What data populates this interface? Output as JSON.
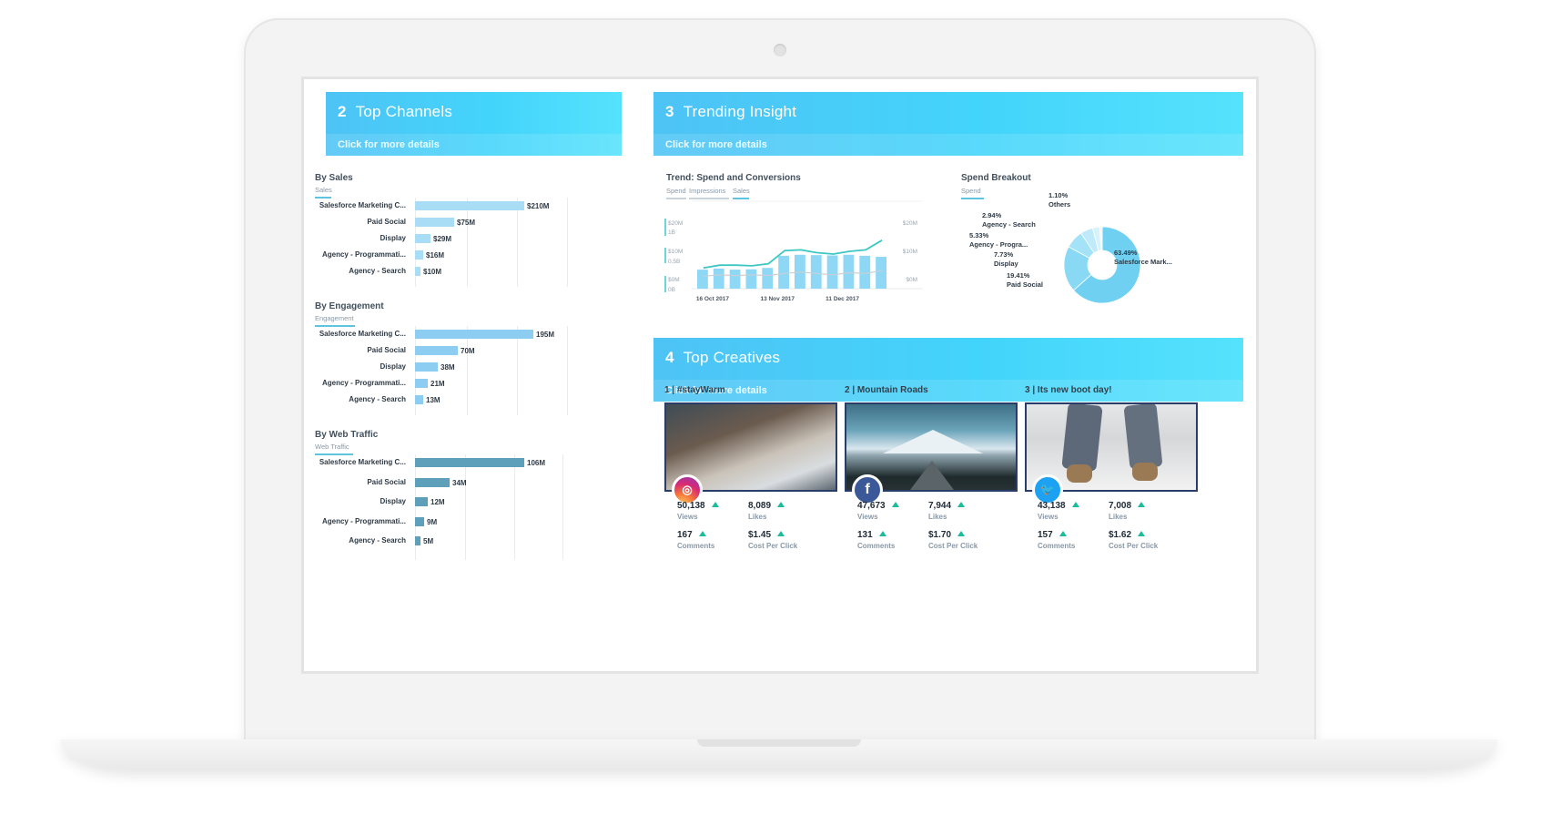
{
  "top_channels": {
    "number": "2",
    "title": "Top Channels",
    "link": "Click for more details",
    "charts": [
      {
        "title": "By Sales",
        "subtitle": "Sales",
        "color": "#a9ddf6",
        "rows": [
          {
            "label": "Salesforce Marketing C...",
            "value": 210,
            "value_label": "$210M"
          },
          {
            "label": "Paid Social",
            "value": 75,
            "value_label": "$75M"
          },
          {
            "label": "Display",
            "value": 29,
            "value_label": "$29M"
          },
          {
            "label": "Agency - Programmati...",
            "value": 16,
            "value_label": "$16M"
          },
          {
            "label": "Agency - Search",
            "value": 10,
            "value_label": "$10M"
          }
        ]
      },
      {
        "title": "By Engagement",
        "subtitle": "Engagement",
        "color": "#8dcdf2",
        "rows": [
          {
            "label": "Salesforce Marketing C...",
            "value": 195,
            "value_label": "195M"
          },
          {
            "label": "Paid Social",
            "value": 70,
            "value_label": "70M"
          },
          {
            "label": "Display",
            "value": 38,
            "value_label": "38M"
          },
          {
            "label": "Agency - Programmati...",
            "value": 21,
            "value_label": "21M"
          },
          {
            "label": "Agency - Search",
            "value": 13,
            "value_label": "13M"
          }
        ]
      },
      {
        "title": "By Web Traffic",
        "subtitle": "Web Traffic",
        "color": "#5e9fba",
        "rows": [
          {
            "label": "Salesforce Marketing C...",
            "value": 106,
            "value_label": "106M"
          },
          {
            "label": "Paid Social",
            "value": 34,
            "value_label": "34M"
          },
          {
            "label": "Display",
            "value": 12,
            "value_label": "12M"
          },
          {
            "label": "Agency - Programmati...",
            "value": 9,
            "value_label": "9M"
          },
          {
            "label": "Agency - Search",
            "value": 5,
            "value_label": "5M"
          }
        ]
      }
    ]
  },
  "trending": {
    "number": "3",
    "title": "Trending Insight",
    "link": "Click for more details",
    "trend": {
      "title": "Trend: Spend and Conversions",
      "tabs": [
        "Spend",
        "Impressions",
        "Sales"
      ],
      "left_ticks": [
        "$20M",
        "1B",
        "$10M",
        "0.5B",
        "$0M",
        "0B"
      ],
      "right_ticks": [
        "$20M",
        "$10M",
        "$0M"
      ],
      "x_ticks": [
        "16 Oct 2017",
        "13 Nov 2017",
        "11 Dec 2017"
      ]
    },
    "breakout": {
      "title": "Spend Breakout",
      "tab": "Spend",
      "slices": [
        {
          "pct": "63.49%",
          "name": "Salesforce Mark...",
          "value": 63.49,
          "color": "#6fd0f2"
        },
        {
          "pct": "19.41%",
          "name": "Paid Social",
          "value": 19.41,
          "color": "#8ad9f4"
        },
        {
          "pct": "7.73%",
          "name": "Display",
          "value": 7.73,
          "color": "#a4e2f7"
        },
        {
          "pct": "5.33%",
          "name": "Agency - Progra...",
          "value": 5.33,
          "color": "#bfeafa"
        },
        {
          "pct": "2.94%",
          "name": "Agency - Search",
          "value": 2.94,
          "color": "#d6f2fc"
        },
        {
          "pct": "1.10%",
          "name": "Others",
          "value": 1.1,
          "color": "#e9f8fe"
        }
      ]
    }
  },
  "chart_data": {
    "type": "bar",
    "title": "Trend: Spend and Conversions",
    "x": [
      "16 Oct 2017",
      "",
      "",
      "",
      "13 Nov 2017",
      "",
      "",
      "",
      "11 Dec 2017",
      "",
      "",
      ""
    ],
    "series": [
      {
        "name": "Spend",
        "type": "bar",
        "values": [
          5.5,
          5.8,
          5.5,
          5.6,
          6.0,
          9.5,
          9.8,
          9.7,
          9.6,
          9.8,
          9.5,
          9.2
        ],
        "color": "#8fd8f5"
      },
      {
        "name": "Sales",
        "type": "line",
        "values": [
          0.3,
          0.34,
          0.34,
          0.33,
          0.36,
          0.55,
          0.56,
          0.52,
          0.5,
          0.54,
          0.56,
          0.7
        ],
        "color": "#3cc7c4"
      },
      {
        "name": "Impressions",
        "type": "line",
        "values": [
          0.18,
          0.2,
          0.19,
          0.2,
          0.19,
          0.22,
          0.24,
          0.22,
          0.2,
          0.23,
          0.22,
          0.26
        ],
        "color": "#c9cfd6"
      }
    ],
    "ylim": [
      0,
      20
    ],
    "y2lim": [
      0,
      1
    ]
  },
  "top_creatives": {
    "number": "4",
    "title": "Top Creatives",
    "link": "Click for more details",
    "items": [
      {
        "title": "1 | #stayWarm",
        "network": "instagram-icon",
        "views": "50,138",
        "likes": "8,089",
        "comments": "167",
        "cpc": "$1.45"
      },
      {
        "title": "2 | Mountain Roads",
        "network": "facebook-icon",
        "views": "47,673",
        "likes": "7,944",
        "comments": "131",
        "cpc": "$1.70"
      },
      {
        "title": "3 | Its new boot day!",
        "network": "twitter-icon",
        "views": "43,138",
        "likes": "7,008",
        "comments": "157",
        "cpc": "$1.62"
      }
    ],
    "labels": {
      "views": "Views",
      "likes": "Likes",
      "comments": "Comments",
      "cpc": "Cost Per Click"
    }
  }
}
